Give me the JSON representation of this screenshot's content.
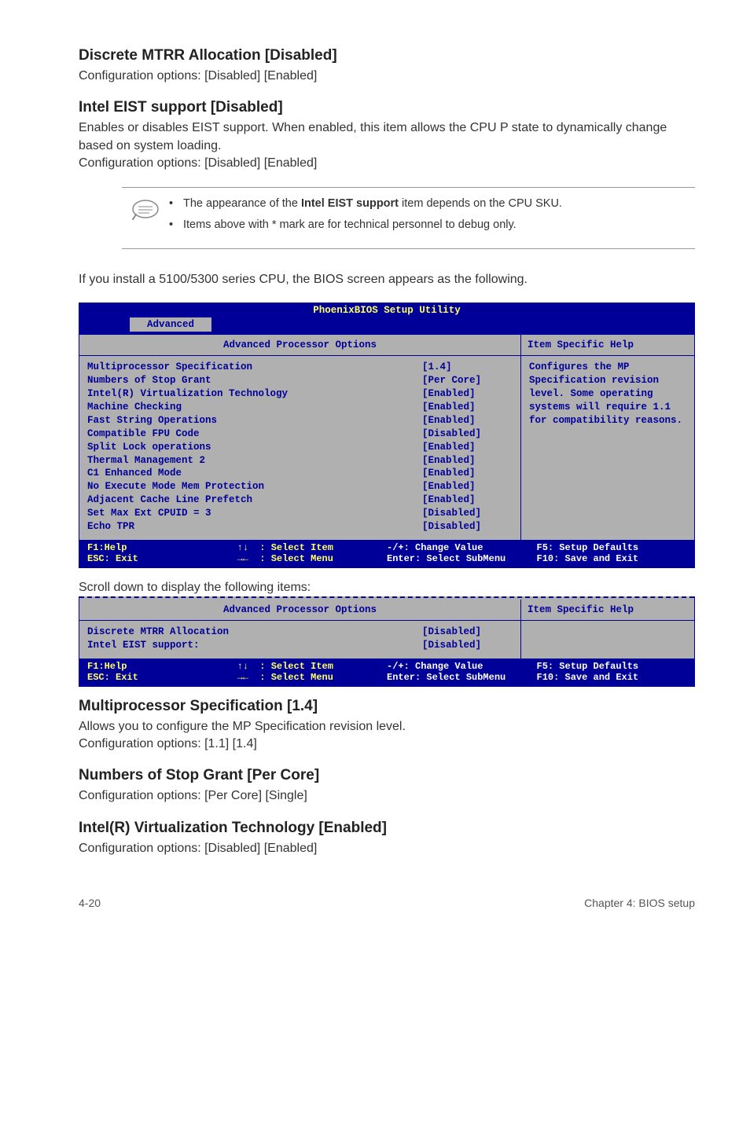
{
  "sections": {
    "s1": {
      "title": "Discrete MTRR Allocation [Disabled]",
      "body": "Configuration options: [Disabled] [Enabled]"
    },
    "s2": {
      "title": "Intel EIST support [Disabled]",
      "body1": "Enables or disables EIST support. When enabled, this item allows the CPU P state to dynamically change based on system loading.",
      "body2": "Configuration options: [Disabled] [Enabled]"
    },
    "note": {
      "li1a": "The appearance of the ",
      "li1b": "Intel EIST support",
      "li1c": " item depends on the CPU SKU.",
      "li2": "Items above with * mark are for technical personnel to debug only."
    },
    "intro2": "If you install a 5100/5300 series CPU, the BIOS screen appears as the following.",
    "scrollcap": "Scroll down to display the following items:",
    "s3": {
      "title": "Multiprocessor Specification [1.4]",
      "body1": "Allows you to configure the MP Specification revision level.",
      "body2": "Configuration options: [1.1] [1.4]"
    },
    "s4": {
      "title": "Numbers of Stop Grant [Per Core]",
      "body": "Configuration options: [Per Core] [Single]"
    },
    "s5": {
      "title": "Intel(R) Virtualization Technology [Enabled]",
      "body": "Configuration options: [Disabled] [Enabled]"
    }
  },
  "bios1": {
    "title": "PhoenixBIOS Setup Utility",
    "tab": "Advanced",
    "sectionHeader": "Advanced Processor Options",
    "helpHeader": "Item Specific Help",
    "helpBody": "Configures the MP Specification revision level. Some operating systems will require 1.1 for compatibility reasons.",
    "rows": [
      {
        "label": "Multiprocessor Specification",
        "value": "[1.4]"
      },
      {
        "label": "Numbers of Stop Grant",
        "value": "[Per Core]"
      },
      {
        "label": "",
        "value": ""
      },
      {
        "label": "Intel(R) Virtualization Technology",
        "value": "[Enabled]"
      },
      {
        "label": "Machine Checking",
        "value": "[Enabled]"
      },
      {
        "label": "",
        "value": ""
      },
      {
        "label": "Fast String Operations",
        "value": "[Enabled]"
      },
      {
        "label": "Compatible FPU Code",
        "value": "[Disabled]"
      },
      {
        "label": "Split Lock operations",
        "value": "[Enabled]"
      },
      {
        "label": "Thermal Management 2",
        "value": "[Enabled]"
      },
      {
        "label": "C1 Enhanced Mode",
        "value": "[Enabled]"
      },
      {
        "label": "No Execute Mode Mem Protection",
        "value": "[Enabled]"
      },
      {
        "label": "Adjacent Cache Line Prefetch",
        "value": "[Enabled]"
      },
      {
        "label": "Set Max Ext CPUID = 3",
        "value": "[Disabled]"
      },
      {
        "label": "Echo TPR",
        "value": "[Disabled]"
      }
    ],
    "footer": {
      "c1a": "F1:Help",
      "c1b": "ESC: Exit",
      "c2a": "↑↓  : Select Item",
      "c2b": "→←  : Select Menu",
      "c3a": "-/+: Change Value",
      "c3b": "Enter: Select SubMenu",
      "c4a": "F5: Setup Defaults",
      "c4b": "F10: Save and Exit"
    }
  },
  "bios2": {
    "sectionHeader": "Advanced Processor Options",
    "helpHeader": "Item Specific Help",
    "rows": [
      {
        "label": "Discrete MTRR Allocation",
        "value": "[Disabled]"
      },
      {
        "label": "Intel EIST support:",
        "value": "[Disabled]"
      }
    ],
    "footer": {
      "c1a": "F1:Help",
      "c1b": "ESC: Exit",
      "c2a": "↑↓  : Select Item",
      "c2b": "→←  : Select Menu",
      "c3a": "-/+: Change Value",
      "c3b": "Enter: Select SubMenu",
      "c4a": "F5: Setup Defaults",
      "c4b": "F10: Save and Exit"
    }
  },
  "pageFooter": {
    "left": "4-20",
    "right": "Chapter 4: BIOS setup"
  }
}
